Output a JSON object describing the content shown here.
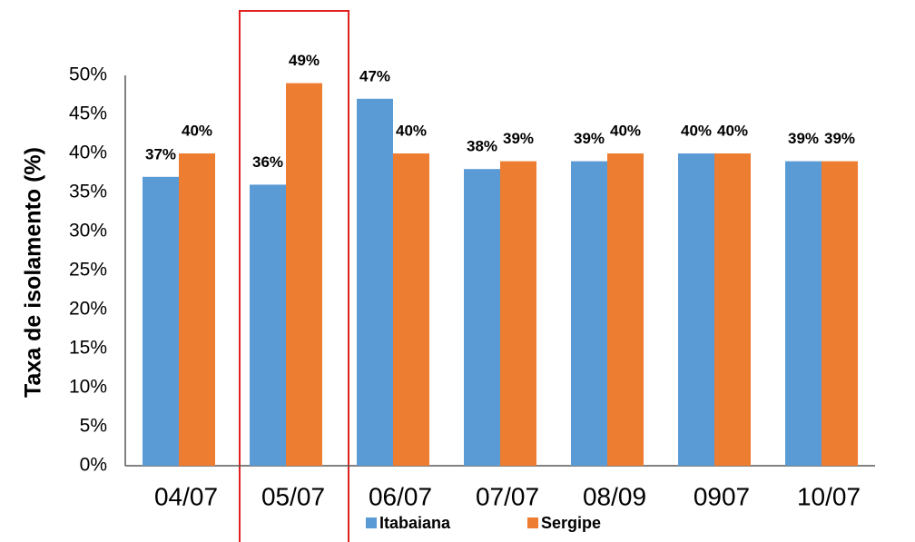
{
  "chart_data": {
    "type": "bar",
    "y_label": "Taxa de isolamento (%)",
    "categories": [
      "04/07",
      "05/07",
      "06/07",
      "07/07",
      "08/09",
      "0907",
      "10/07"
    ],
    "series": [
      {
        "name": "Itabaiana",
        "color": "#5b9bd5",
        "values": [
          37,
          36,
          47,
          38,
          39,
          40,
          39
        ],
        "value_labels": [
          "37%",
          "36%",
          "47%",
          "38%",
          "39%",
          "40%",
          "39%"
        ]
      },
      {
        "name": "Sergipe",
        "color": "#ed7d31",
        "values": [
          40,
          49,
          40,
          39,
          40,
          40,
          39
        ],
        "value_labels": [
          "40%",
          "49%",
          "40%",
          "39%",
          "40%",
          "40%",
          "39%"
        ]
      }
    ],
    "ylim": [
      0,
      50
    ],
    "yticks": [
      {
        "value": 0,
        "label": "0%"
      },
      {
        "value": 5,
        "label": "5%"
      },
      {
        "value": 10,
        "label": "10%"
      },
      {
        "value": 15,
        "label": "15%"
      },
      {
        "value": 20,
        "label": "20%"
      },
      {
        "value": 25,
        "label": "25%"
      },
      {
        "value": 30,
        "label": "30%"
      },
      {
        "value": 35,
        "label": "35%"
      },
      {
        "value": 40,
        "label": "40%"
      },
      {
        "value": 45,
        "label": "45%"
      },
      {
        "value": 50,
        "label": "50%"
      }
    ],
    "grid": false,
    "legend": "bottom"
  }
}
